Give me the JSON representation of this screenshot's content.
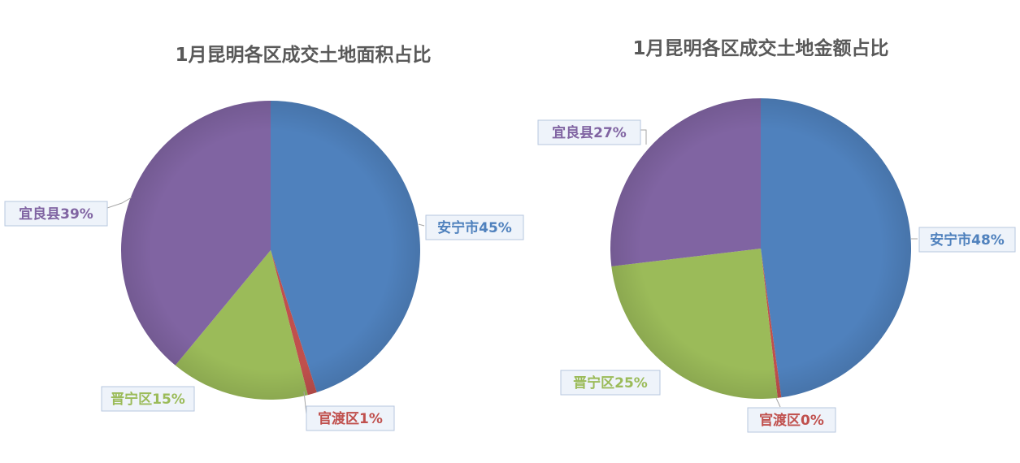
{
  "chart_data": [
    {
      "type": "pie",
      "title": "1月昆明各区成交土地面积占比",
      "categories": [
        "安宁市",
        "官渡区",
        "晋宁区",
        "宜良县"
      ],
      "values": [
        45,
        1,
        15,
        39
      ],
      "labels": [
        "安宁市45%",
        "官渡区1%",
        "晋宁区15%",
        "宜良县39%"
      ],
      "colors": [
        "#4f81bd",
        "#c0504d",
        "#9bbb59",
        "#8064a2"
      ],
      "legend": "none"
    },
    {
      "type": "pie",
      "title": "1月昆明各区成交土地金额占比",
      "categories": [
        "安宁市",
        "官渡区",
        "晋宁区",
        "宜良县"
      ],
      "values": [
        48,
        0.4,
        25,
        27
      ],
      "labels": [
        "安宁市48%",
        "官渡区0%",
        "晋宁区25%",
        "宜良县27%"
      ],
      "colors": [
        "#4f81bd",
        "#c0504d",
        "#9bbb59",
        "#8064a2"
      ],
      "legend": "none"
    }
  ]
}
